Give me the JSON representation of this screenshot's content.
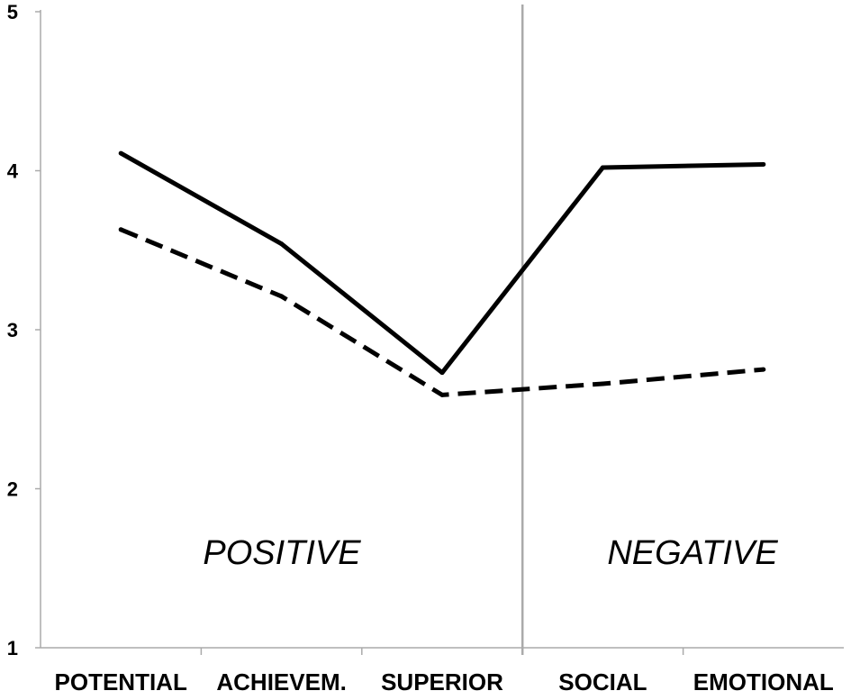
{
  "chart_data": {
    "type": "line",
    "categories": [
      "POTENTIAL",
      "ACHIEVEM.",
      "SUPERIOR",
      "SOCIAL",
      "EMOTIONAL"
    ],
    "series": [
      {
        "line_style": "solid",
        "values": [
          4.11,
          3.54,
          2.73,
          4.02,
          4.04
        ]
      },
      {
        "line_style": "dashed",
        "values": [
          3.63,
          3.21,
          2.59,
          2.66,
          2.75
        ]
      }
    ],
    "ylim": [
      1,
      5
    ],
    "yticks": [
      1,
      2,
      3,
      4,
      5
    ],
    "grid": false,
    "legend": "none",
    "regions": [
      {
        "label": "POSITIVE",
        "categories": [
          "POTENTIAL",
          "ACHIEVEM.",
          "SUPERIOR"
        ]
      },
      {
        "label": "NEGATIVE",
        "categories": [
          "SOCIAL",
          "EMOTIONAL"
        ]
      }
    ],
    "divider_after_category": "SUPERIOR",
    "colors": {
      "lines": "#000000",
      "axis": "#aaaaaa",
      "divider": "#aaaaaa"
    }
  }
}
